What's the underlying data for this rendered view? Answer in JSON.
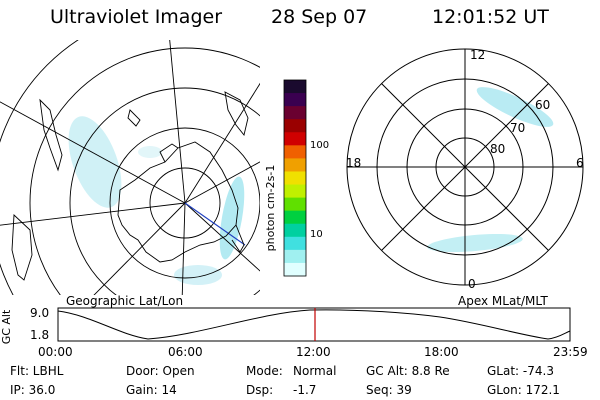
{
  "header": {
    "instrument": "Ultraviolet Imager",
    "date": "28 Sep 07",
    "time": "12:01:52 UT"
  },
  "colorbar": {
    "unit_label": "photon cm-2s-1",
    "ticks": [
      "100",
      "10"
    ],
    "colors": [
      "#1a0a2e",
      "#3a0050",
      "#6a0030",
      "#9a0000",
      "#d00000",
      "#f06000",
      "#f0a000",
      "#f0e000",
      "#c0f000",
      "#60e000",
      "#00d040",
      "#00d0a0",
      "#40e0e0",
      "#a0f0f0",
      "#e0ffff"
    ]
  },
  "geo_panel": {
    "caption": "Geographic Lat/Lon"
  },
  "polar_panel": {
    "caption": "Apex MLat/MLT",
    "mlt_labels": {
      "top": "12",
      "left": "18",
      "right": "6",
      "bottom": "0"
    },
    "lat_labels": [
      "60",
      "70",
      "80"
    ]
  },
  "altitude_plot": {
    "ylabel": "GC Alt",
    "y_ticks": [
      "9.0",
      "1.8"
    ],
    "x_ticks": [
      "00:00",
      "06:00",
      "12:00",
      "18:00",
      "23:59"
    ]
  },
  "footer": {
    "col1": [
      "Flt: LBHL",
      "IP: 36.0"
    ],
    "col2": [
      "Door: Open",
      "Gain: 14"
    ],
    "col3_labels": [
      "Mode:",
      "Dsp:"
    ],
    "col3_values": [
      "Normal",
      "-1.7"
    ],
    "col4": [
      "GC Alt: 8.8 Re",
      "Seq: 39"
    ],
    "col5": [
      "GLat: -74.3",
      "GLon: 172.1"
    ]
  }
}
